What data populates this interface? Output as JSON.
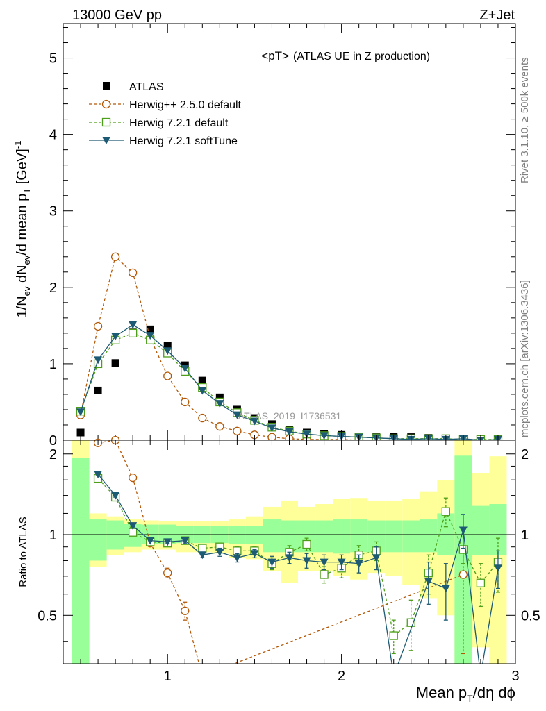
{
  "header": {
    "left": "13000 GeV pp",
    "right": "Z+Jet"
  },
  "side": {
    "rivet_text": "Rivet 3.1.10, ≥ 500k events",
    "mcplots_text": "mcplots.cern.ch [arXiv:1306.3436]"
  },
  "chart_data": {
    "type": "line",
    "title": "<pT> (ATLAS UE in Z production)",
    "title_main": "<pT>",
    "title_sub": "(ATLAS UE in Z production)",
    "watermark": "ATLAS_2019_I1736531",
    "xlabel": "Mean p_T/dη dϕ",
    "xlabel_parts": {
      "pre": "Mean p",
      "sub": "T",
      "post": "/dη dϕ"
    },
    "ylabel": "1/N_ev dN_ev/d mean p_T [GeV]^-1",
    "ylabel_parts": {
      "a": "1/N",
      "a_sub": "ev",
      "b": " dN",
      "b_sub": "ev",
      "c": "/d mean p",
      "c_sub": "T",
      "d": " [GeV]",
      "d_sup": "-1"
    },
    "ratio_ylabel": "Ratio to ATLAS",
    "xlim": [
      0.4,
      3.0
    ],
    "ylim": [
      0,
      5.45
    ],
    "ratio_ylim": [
      0.33,
      2.25
    ],
    "x_ticks": [
      1,
      2,
      3
    ],
    "x_tick_labels": [
      "1",
      "2",
      "3"
    ],
    "y_ticks": [
      0,
      1,
      2,
      3,
      4,
      5
    ],
    "y_tick_labels": [
      "0",
      "1",
      "2",
      "3",
      "4",
      "5"
    ],
    "ratio_y_ticks": [
      0.5,
      1,
      2
    ],
    "ratio_y_tick_labels": [
      "0.5",
      "1",
      "2"
    ],
    "x": [
      0.5,
      0.6,
      0.7,
      0.8,
      0.9,
      1.0,
      1.1,
      1.2,
      1.3,
      1.4,
      1.5,
      1.6,
      1.7,
      1.8,
      1.9,
      2.0,
      2.1,
      2.2,
      2.3,
      2.4,
      2.5,
      2.6,
      2.7,
      2.8,
      2.9
    ],
    "series": [
      {
        "name": "ATLAS",
        "style": "data",
        "color": "#000000",
        "values": [
          0.1,
          0.65,
          1.01,
          1.41,
          1.45,
          1.24,
          0.98,
          0.78,
          0.56,
          0.4,
          0.29,
          0.21,
          0.14,
          0.1,
          0.08,
          0.07,
          0.05,
          0.04,
          0.05,
          0.04,
          0.03,
          0.02,
          0.02,
          0.02,
          0.01
        ],
        "ratio": null
      },
      {
        "name": "Herwig++ 2.5.0 default",
        "style": "circle-dashed",
        "color": "#b35806",
        "values": [
          0.33,
          1.49,
          2.4,
          2.19,
          1.34,
          0.84,
          0.5,
          0.29,
          0.18,
          0.12,
          0.07,
          0.04,
          0.02,
          0.01,
          0.01,
          0.01,
          0.0,
          0.0,
          0.0,
          0.0,
          0.0,
          0.0,
          0.0,
          0.0,
          0.0
        ],
        "ratio": [
          null,
          2.2,
          2.25,
          1.63,
          0.93,
          0.72,
          0.52,
          0.27,
          null,
          null,
          null,
          null,
          null,
          null,
          null,
          null,
          null,
          null,
          null,
          null,
          null,
          null,
          0.71,
          null,
          null
        ],
        "ratio_err": [
          0,
          0.03,
          0.03,
          0.02,
          0.02,
          0.03,
          0.04,
          0.06,
          0,
          0,
          0,
          0,
          0,
          0,
          0,
          0,
          0,
          0,
          0,
          0,
          0,
          0,
          0.35,
          0,
          0
        ]
      },
      {
        "name": "Herwig 7.2.1 default",
        "style": "square-dashed",
        "color": "#4d9e18",
        "values": [
          0.38,
          1.0,
          1.31,
          1.4,
          1.31,
          1.14,
          0.9,
          0.69,
          0.5,
          0.36,
          0.26,
          0.17,
          0.12,
          0.08,
          0.06,
          0.05,
          0.04,
          0.03,
          0.02,
          0.02,
          0.02,
          0.02,
          0.01,
          0.01,
          0.01
        ],
        "ratio": [
          null,
          1.62,
          1.38,
          1.02,
          0.94,
          0.93,
          0.95,
          0.89,
          0.9,
          0.87,
          0.87,
          0.78,
          0.86,
          0.92,
          0.71,
          0.75,
          0.84,
          0.87,
          0.42,
          0.47,
          0.72,
          1.22,
          0.88,
          0.66,
          0.79
        ],
        "ratio_err": [
          0,
          0.02,
          0.02,
          0.01,
          0.01,
          0.01,
          0.02,
          0.02,
          0.03,
          0.03,
          0.03,
          0.04,
          0.05,
          0.05,
          0.05,
          0.06,
          0.07,
          0.07,
          0.06,
          0.1,
          0.12,
          0.15,
          0.1,
          0.12,
          0.18
        ]
      },
      {
        "name": "Herwig 7.2.1 softTune",
        "style": "triangle-solid",
        "color": "#1d5a73",
        "values": [
          0.37,
          1.05,
          1.36,
          1.51,
          1.37,
          1.17,
          0.94,
          0.65,
          0.48,
          0.33,
          0.25,
          0.16,
          0.11,
          0.08,
          0.06,
          0.05,
          0.04,
          0.03,
          0.02,
          0.01,
          0.02,
          0.01,
          0.02,
          0.0,
          0.01
        ],
        "ratio": [
          null,
          1.68,
          1.4,
          1.08,
          0.95,
          0.94,
          0.95,
          0.84,
          0.86,
          0.82,
          0.85,
          0.79,
          0.82,
          0.8,
          0.79,
          0.79,
          0.78,
          0.82,
          0.2,
          null,
          0.67,
          0.63,
          1.04,
          0.25,
          0.75
        ],
        "ratio_err": [
          0,
          0.02,
          0.02,
          0.01,
          0.01,
          0.01,
          0.02,
          0.02,
          0.03,
          0.03,
          0.03,
          0.04,
          0.04,
          0.05,
          0.05,
          0.05,
          0.06,
          0.08,
          0.1,
          0,
          0.12,
          0.15,
          0.15,
          0.2,
          0.12
        ]
      }
    ],
    "ratio_bands": {
      "x_edges": [
        0.45,
        0.55,
        0.65,
        0.75,
        0.85,
        0.95,
        1.05,
        1.15,
        1.25,
        1.35,
        1.45,
        1.55,
        1.65,
        1.75,
        1.85,
        1.95,
        2.05,
        2.15,
        2.25,
        2.35,
        2.45,
        2.55,
        2.65,
        2.75,
        2.85,
        2.95
      ],
      "inner_color": "#99ff99",
      "outer_color": "#ffff99",
      "inner_lo": [
        0.33,
        0.8,
        0.88,
        0.9,
        0.92,
        0.92,
        0.93,
        0.93,
        0.93,
        0.92,
        0.92,
        0.86,
        0.86,
        0.86,
        0.86,
        0.85,
        0.86,
        0.86,
        0.86,
        0.86,
        0.86,
        0.84,
        0.33,
        0.84,
        0.84
      ],
      "inner_hi": [
        1.93,
        1.14,
        1.13,
        1.1,
        1.09,
        1.09,
        1.08,
        1.08,
        1.08,
        1.08,
        1.08,
        1.14,
        1.13,
        1.13,
        1.13,
        1.14,
        1.14,
        1.13,
        1.13,
        1.13,
        1.14,
        1.2,
        1.97,
        1.28,
        1.3
      ],
      "outer_lo": [
        0.33,
        0.76,
        0.84,
        0.86,
        0.88,
        0.88,
        0.86,
        0.86,
        0.85,
        0.82,
        0.81,
        0.73,
        0.66,
        0.73,
        0.73,
        0.7,
        0.68,
        0.72,
        0.7,
        0.65,
        0.58,
        0.5,
        0.33,
        0.38,
        0.33
      ],
      "outer_hi": [
        2.25,
        1.2,
        1.17,
        1.14,
        1.13,
        1.12,
        1.12,
        1.12,
        1.12,
        1.14,
        1.17,
        1.27,
        1.34,
        1.27,
        1.3,
        1.36,
        1.37,
        1.34,
        1.34,
        1.36,
        1.45,
        1.6,
        2.25,
        1.7,
        1.96
      ]
    }
  }
}
